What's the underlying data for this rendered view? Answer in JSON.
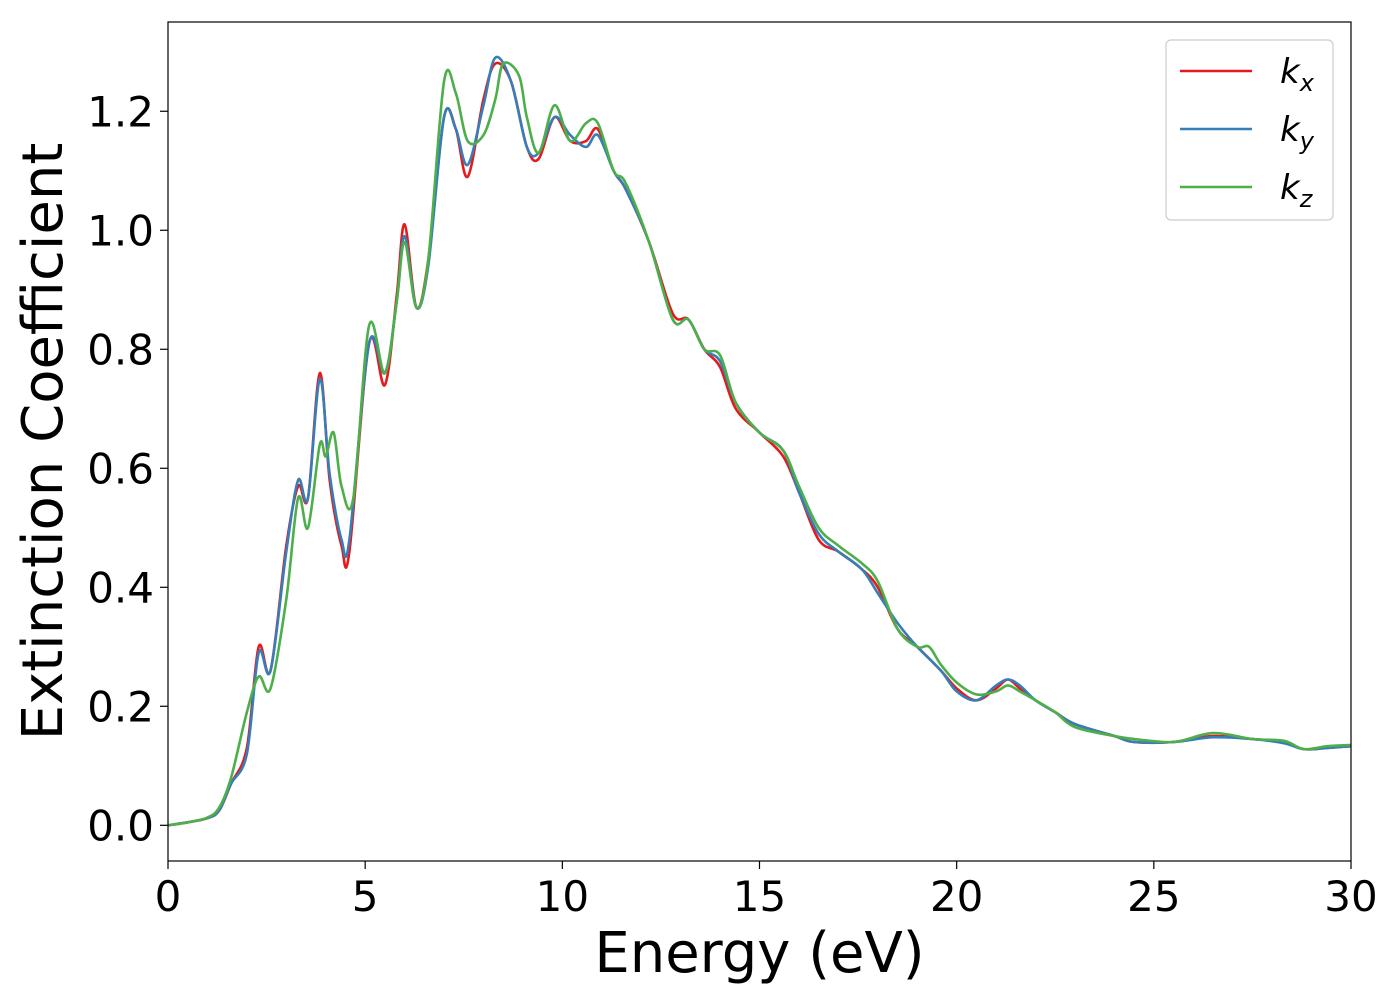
{
  "chart_data": {
    "type": "line",
    "xlabel": "Energy (eV)",
    "ylabel": "Extinction Coefficient",
    "xlim": [
      0,
      30
    ],
    "ylim": [
      -0.06,
      1.35
    ],
    "x_ticks": [
      "0",
      "5",
      "10",
      "15",
      "20",
      "25",
      "30"
    ],
    "y_ticks": [
      "0.0",
      "0.2",
      "0.4",
      "0.6",
      "0.8",
      "1.0",
      "1.2"
    ],
    "grid": false,
    "legend_position": "top-right",
    "series": [
      {
        "name": "k",
        "subscript": "x",
        "color": "#e41a1c",
        "points": [
          [
            0,
            0
          ],
          [
            0.5,
            0.005
          ],
          [
            1.0,
            0.012
          ],
          [
            1.3,
            0.025
          ],
          [
            1.6,
            0.07
          ],
          [
            2.0,
            0.13
          ],
          [
            2.3,
            0.3
          ],
          [
            2.6,
            0.26
          ],
          [
            3.0,
            0.47
          ],
          [
            3.3,
            0.57
          ],
          [
            3.55,
            0.55
          ],
          [
            3.85,
            0.76
          ],
          [
            4.1,
            0.58
          ],
          [
            4.4,
            0.47
          ],
          [
            4.6,
            0.46
          ],
          [
            5.1,
            0.81
          ],
          [
            5.5,
            0.74
          ],
          [
            5.8,
            0.89
          ],
          [
            6.0,
            1.01
          ],
          [
            6.3,
            0.87
          ],
          [
            6.6,
            0.95
          ],
          [
            7.0,
            1.19
          ],
          [
            7.3,
            1.17
          ],
          [
            7.6,
            1.09
          ],
          [
            8.0,
            1.22
          ],
          [
            8.3,
            1.28
          ],
          [
            8.7,
            1.25
          ],
          [
            9.1,
            1.14
          ],
          [
            9.4,
            1.12
          ],
          [
            9.8,
            1.19
          ],
          [
            10.2,
            1.15
          ],
          [
            10.6,
            1.15
          ],
          [
            10.9,
            1.17
          ],
          [
            11.3,
            1.1
          ],
          [
            11.6,
            1.07
          ],
          [
            12.2,
            0.98
          ],
          [
            12.8,
            0.86
          ],
          [
            13.2,
            0.85
          ],
          [
            13.6,
            0.8
          ],
          [
            14.0,
            0.77
          ],
          [
            14.4,
            0.7
          ],
          [
            15.0,
            0.66
          ],
          [
            15.6,
            0.62
          ],
          [
            16.0,
            0.56
          ],
          [
            16.5,
            0.48
          ],
          [
            17.0,
            0.46
          ],
          [
            17.6,
            0.43
          ],
          [
            18.0,
            0.4
          ],
          [
            18.5,
            0.33
          ],
          [
            19.0,
            0.3
          ],
          [
            19.6,
            0.26
          ],
          [
            20.0,
            0.23
          ],
          [
            20.5,
            0.21
          ],
          [
            21.0,
            0.23
          ],
          [
            21.3,
            0.245
          ],
          [
            21.6,
            0.23
          ],
          [
            22.0,
            0.21
          ],
          [
            22.5,
            0.19
          ],
          [
            23.0,
            0.17
          ],
          [
            24.0,
            0.15
          ],
          [
            24.5,
            0.14
          ],
          [
            25.5,
            0.14
          ],
          [
            26.5,
            0.15
          ],
          [
            27.5,
            0.145
          ],
          [
            28.3,
            0.14
          ],
          [
            28.8,
            0.128
          ],
          [
            29.4,
            0.13
          ],
          [
            30,
            0.133
          ]
        ]
      },
      {
        "name": "k",
        "subscript": "y",
        "color": "#377eb8",
        "points": [
          [
            0,
            0
          ],
          [
            0.5,
            0.005
          ],
          [
            1.0,
            0.012
          ],
          [
            1.3,
            0.025
          ],
          [
            1.6,
            0.07
          ],
          [
            2.0,
            0.12
          ],
          [
            2.3,
            0.29
          ],
          [
            2.6,
            0.26
          ],
          [
            3.0,
            0.46
          ],
          [
            3.3,
            0.58
          ],
          [
            3.55,
            0.55
          ],
          [
            3.85,
            0.75
          ],
          [
            4.1,
            0.59
          ],
          [
            4.4,
            0.48
          ],
          [
            4.6,
            0.48
          ],
          [
            5.1,
            0.81
          ],
          [
            5.5,
            0.76
          ],
          [
            5.8,
            0.88
          ],
          [
            6.0,
            0.99
          ],
          [
            6.3,
            0.87
          ],
          [
            6.6,
            0.94
          ],
          [
            7.0,
            1.19
          ],
          [
            7.3,
            1.17
          ],
          [
            7.6,
            1.11
          ],
          [
            8.0,
            1.21
          ],
          [
            8.3,
            1.29
          ],
          [
            8.7,
            1.25
          ],
          [
            9.1,
            1.14
          ],
          [
            9.4,
            1.13
          ],
          [
            9.8,
            1.19
          ],
          [
            10.2,
            1.16
          ],
          [
            10.6,
            1.14
          ],
          [
            10.9,
            1.16
          ],
          [
            11.3,
            1.1
          ],
          [
            11.6,
            1.07
          ],
          [
            12.2,
            0.98
          ],
          [
            12.8,
            0.85
          ],
          [
            13.2,
            0.85
          ],
          [
            13.6,
            0.8
          ],
          [
            14.0,
            0.78
          ],
          [
            14.4,
            0.71
          ],
          [
            15.0,
            0.66
          ],
          [
            15.6,
            0.63
          ],
          [
            16.0,
            0.56
          ],
          [
            16.5,
            0.49
          ],
          [
            17.0,
            0.46
          ],
          [
            17.6,
            0.43
          ],
          [
            18.0,
            0.39
          ],
          [
            18.5,
            0.34
          ],
          [
            19.0,
            0.3
          ],
          [
            19.6,
            0.26
          ],
          [
            20.0,
            0.225
          ],
          [
            20.5,
            0.21
          ],
          [
            21.0,
            0.235
          ],
          [
            21.3,
            0.245
          ],
          [
            21.6,
            0.235
          ],
          [
            22.0,
            0.21
          ],
          [
            22.5,
            0.19
          ],
          [
            23.0,
            0.17
          ],
          [
            24.0,
            0.15
          ],
          [
            24.5,
            0.14
          ],
          [
            25.5,
            0.14
          ],
          [
            26.5,
            0.148
          ],
          [
            27.5,
            0.145
          ],
          [
            28.3,
            0.138
          ],
          [
            28.8,
            0.128
          ],
          [
            29.4,
            0.13
          ],
          [
            30,
            0.133
          ]
        ]
      },
      {
        "name": "k",
        "subscript": "z",
        "color": "#4daf4a",
        "points": [
          [
            0,
            0
          ],
          [
            0.5,
            0.005
          ],
          [
            1.0,
            0.013
          ],
          [
            1.3,
            0.03
          ],
          [
            1.6,
            0.08
          ],
          [
            2.0,
            0.19
          ],
          [
            2.3,
            0.25
          ],
          [
            2.6,
            0.23
          ],
          [
            3.0,
            0.38
          ],
          [
            3.3,
            0.55
          ],
          [
            3.55,
            0.5
          ],
          [
            3.85,
            0.64
          ],
          [
            4.0,
            0.62
          ],
          [
            4.2,
            0.66
          ],
          [
            4.4,
            0.57
          ],
          [
            4.7,
            0.55
          ],
          [
            5.1,
            0.84
          ],
          [
            5.5,
            0.76
          ],
          [
            5.8,
            0.88
          ],
          [
            6.0,
            0.98
          ],
          [
            6.3,
            0.87
          ],
          [
            6.6,
            0.95
          ],
          [
            7.0,
            1.25
          ],
          [
            7.3,
            1.23
          ],
          [
            7.6,
            1.15
          ],
          [
            8.0,
            1.16
          ],
          [
            8.3,
            1.22
          ],
          [
            8.5,
            1.28
          ],
          [
            8.9,
            1.26
          ],
          [
            9.1,
            1.19
          ],
          [
            9.4,
            1.13
          ],
          [
            9.8,
            1.21
          ],
          [
            10.2,
            1.15
          ],
          [
            10.6,
            1.18
          ],
          [
            10.9,
            1.18
          ],
          [
            11.3,
            1.1
          ],
          [
            11.6,
            1.08
          ],
          [
            12.2,
            0.98
          ],
          [
            12.8,
            0.85
          ],
          [
            13.2,
            0.85
          ],
          [
            13.6,
            0.8
          ],
          [
            14.0,
            0.79
          ],
          [
            14.4,
            0.71
          ],
          [
            15.0,
            0.66
          ],
          [
            15.6,
            0.63
          ],
          [
            16.0,
            0.57
          ],
          [
            16.5,
            0.5
          ],
          [
            17.0,
            0.47
          ],
          [
            17.6,
            0.44
          ],
          [
            18.0,
            0.41
          ],
          [
            18.5,
            0.33
          ],
          [
            19.0,
            0.3
          ],
          [
            19.3,
            0.3
          ],
          [
            19.6,
            0.27
          ],
          [
            20.0,
            0.24
          ],
          [
            20.5,
            0.22
          ],
          [
            21.0,
            0.225
          ],
          [
            21.3,
            0.235
          ],
          [
            21.6,
            0.225
          ],
          [
            22.0,
            0.21
          ],
          [
            22.5,
            0.19
          ],
          [
            23.0,
            0.165
          ],
          [
            24.0,
            0.15
          ],
          [
            24.5,
            0.145
          ],
          [
            25.5,
            0.14
          ],
          [
            26.5,
            0.155
          ],
          [
            27.5,
            0.145
          ],
          [
            28.3,
            0.142
          ],
          [
            28.8,
            0.128
          ],
          [
            29.4,
            0.133
          ],
          [
            30,
            0.135
          ]
        ]
      }
    ]
  }
}
